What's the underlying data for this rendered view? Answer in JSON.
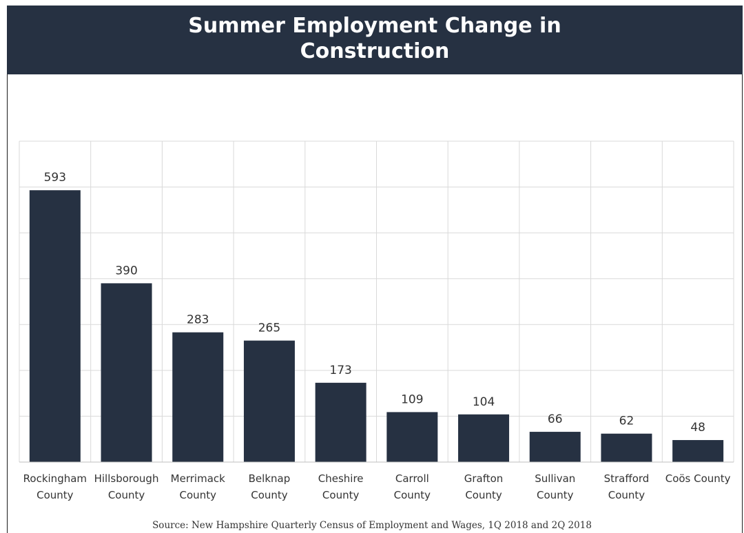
{
  "title": "Summer Employment Change in Construction",
  "source": "Source: New Hampshire Quarterly Census of Employment and Wages, 1Q 2018 and 2Q 2018",
  "colors": {
    "header_bg": "#263142",
    "bar": "#263142",
    "grid": "#d9d9d9"
  },
  "chart_data": {
    "type": "bar",
    "title": "Summer Employment Change in Construction",
    "xlabel": "",
    "ylabel": "",
    "ylim": [
      0,
      700
    ],
    "grid": true,
    "legend": "none",
    "categories": [
      [
        "Rockingham",
        "County"
      ],
      [
        "Hillsborough",
        "County"
      ],
      [
        "Merrimack",
        "County"
      ],
      [
        "Belknap",
        "County"
      ],
      [
        "Cheshire",
        "County"
      ],
      [
        "Carroll",
        "County"
      ],
      [
        "Grafton",
        "County"
      ],
      [
        "Sullivan",
        "County"
      ],
      [
        "Strafford",
        "County"
      ],
      [
        "Coös County"
      ]
    ],
    "values": [
      593,
      390,
      283,
      265,
      173,
      109,
      104,
      66,
      62,
      48
    ]
  }
}
